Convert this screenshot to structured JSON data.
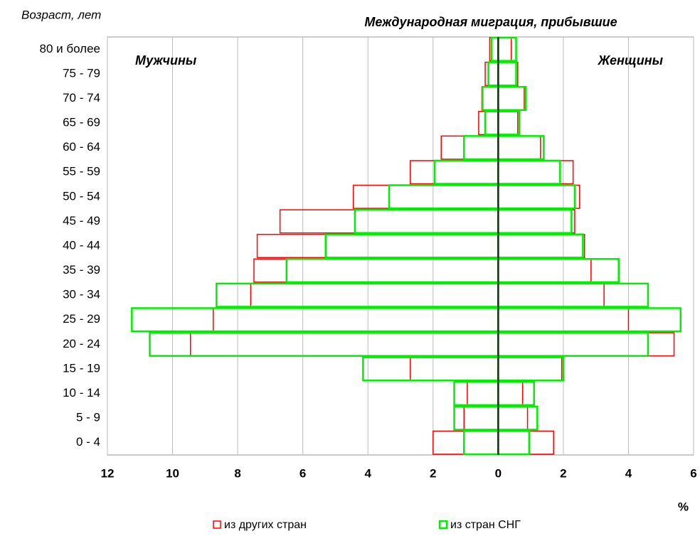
{
  "chart_data": {
    "type": "pyramid",
    "title": "Международная миграция, прибывшие",
    "y_axis_title": "Возраст, лет",
    "x_axis_title": "%",
    "groups": [
      "Мужчины",
      "Женщины"
    ],
    "categories": [
      "0 - 4",
      "5 - 9",
      "10 - 14",
      "15 - 19",
      "20 - 24",
      "25 - 29",
      "30 - 34",
      "35 - 39",
      "40 - 44",
      "45 - 49",
      "50 - 54",
      "55 - 59",
      "60 - 64",
      "65 - 69",
      "70 - 74",
      "75 - 79",
      "80 и более"
    ],
    "series": [
      {
        "name": "из других стран",
        "color": "#ff0000",
        "men": [
          -2.0,
          -1.05,
          -0.95,
          -2.7,
          -9.45,
          -8.75,
          -7.6,
          -7.5,
          -7.4,
          -6.7,
          -4.45,
          -2.7,
          -1.75,
          -0.6,
          -0.5,
          -0.4,
          -0.26
        ],
        "women": [
          1.7,
          0.9,
          0.75,
          1.95,
          5.4,
          4.0,
          3.25,
          2.85,
          2.65,
          2.35,
          2.5,
          2.3,
          1.3,
          0.6,
          0.8,
          0.6,
          0.4
        ]
      },
      {
        "name": "из стран СНГ",
        "color": "#00ee00",
        "men": [
          -1.05,
          -1.35,
          -1.35,
          -4.15,
          -10.7,
          -11.25,
          -8.65,
          -6.5,
          -5.3,
          -4.4,
          -3.35,
          -1.95,
          -1.05,
          -0.4,
          -0.48,
          -0.3,
          -0.2
        ],
        "women": [
          0.95,
          1.2,
          1.1,
          2.0,
          4.6,
          5.6,
          4.6,
          3.7,
          2.6,
          2.25,
          2.35,
          1.9,
          1.4,
          0.65,
          0.85,
          0.55,
          0.55
        ]
      }
    ],
    "xlim": [
      -12,
      6
    ],
    "xticks": [
      {
        "value": -12,
        "label": "12"
      },
      {
        "value": -10,
        "label": "10"
      },
      {
        "value": -8,
        "label": "8"
      },
      {
        "value": -6,
        "label": "6"
      },
      {
        "value": -4,
        "label": "4"
      },
      {
        "value": -2,
        "label": "2"
      },
      0,
      2,
      4,
      6
    ],
    "grid": true
  }
}
